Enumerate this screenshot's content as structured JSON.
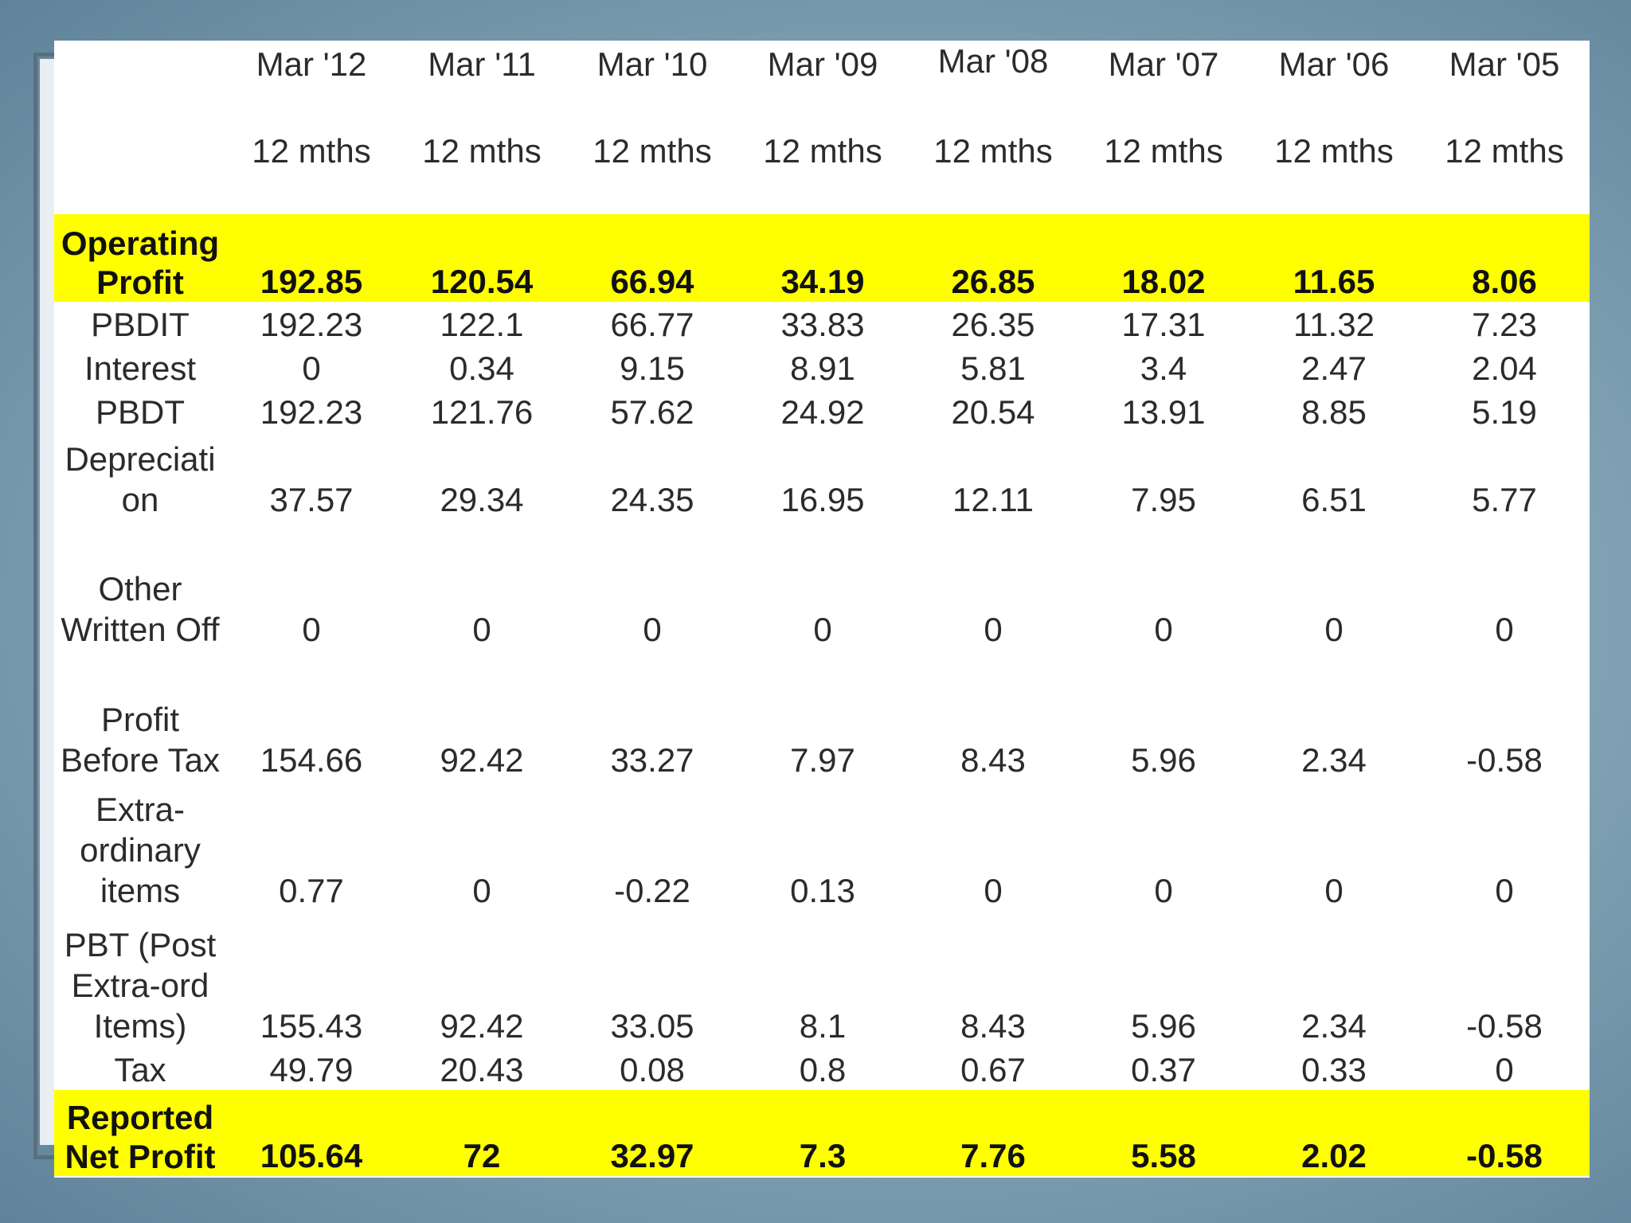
{
  "table": {
    "columns": [
      {
        "period": "Mar '12",
        "months": "12 mths"
      },
      {
        "period": "Mar '11",
        "months": "12 mths"
      },
      {
        "period": "Mar '10",
        "months": "12 mths"
      },
      {
        "period": "Mar '09",
        "months": "12 mths"
      },
      {
        "period": "Mar '08",
        "months": "12 mths"
      },
      {
        "period": "Mar '07",
        "months": "12 mths"
      },
      {
        "period": "Mar '06",
        "months": "12 mths"
      },
      {
        "period": "Mar '05",
        "months": "12 mths"
      }
    ],
    "rows": [
      {
        "label": "Operating Profit",
        "values": [
          "192.85",
          "120.54",
          "66.94",
          "34.19",
          "26.85",
          "18.02",
          "11.65",
          "8.06"
        ],
        "highlight": true
      },
      {
        "label": "PBDIT",
        "values": [
          "192.23",
          "122.1",
          "66.77",
          "33.83",
          "26.35",
          "17.31",
          "11.32",
          "7.23"
        ],
        "highlight": false
      },
      {
        "label": "Interest",
        "values": [
          "0",
          "0.34",
          "9.15",
          "8.91",
          "5.81",
          "3.4",
          "2.47",
          "2.04"
        ],
        "highlight": false
      },
      {
        "label": "PBDT",
        "values": [
          "192.23",
          "121.76",
          "57.62",
          "24.92",
          "20.54",
          "13.91",
          "8.85",
          "5.19"
        ],
        "highlight": false
      },
      {
        "label": "Depreciati on",
        "values": [
          "37.57",
          "29.34",
          "24.35",
          "16.95",
          "12.11",
          "7.95",
          "6.51",
          "5.77"
        ],
        "highlight": false
      },
      {
        "label": "Other Written Off",
        "values": [
          "0",
          "0",
          "0",
          "0",
          "0",
          "0",
          "0",
          "0"
        ],
        "highlight": false
      },
      {
        "label": "Profit Before Tax",
        "values": [
          "154.66",
          "92.42",
          "33.27",
          "7.97",
          "8.43",
          "5.96",
          "2.34",
          "-0.58"
        ],
        "highlight": false
      },
      {
        "label": "Extra- ordinary items",
        "values": [
          "0.77",
          "0",
          "-0.22",
          "0.13",
          "0",
          "0",
          "0",
          "0"
        ],
        "highlight": false
      },
      {
        "label": "PBT (Post Extra-ord Items)",
        "values": [
          "155.43",
          "92.42",
          "33.05",
          "8.1",
          "8.43",
          "5.96",
          "2.34",
          "-0.58"
        ],
        "highlight": false
      },
      {
        "label": "Tax",
        "values": [
          "49.79",
          "20.43",
          "0.08",
          "0.8",
          "0.67",
          "0.37",
          "0.33",
          "0"
        ],
        "highlight": false
      },
      {
        "label": "Reported Net Profit",
        "values": [
          "105.64",
          "72",
          "32.97",
          "7.3",
          "7.76",
          "5.58",
          "2.02",
          "-0.58"
        ],
        "highlight": true
      }
    ]
  },
  "colors": {
    "highlight": "#ffff00",
    "text": "#2b2b2b",
    "background": "#88a9ba"
  }
}
